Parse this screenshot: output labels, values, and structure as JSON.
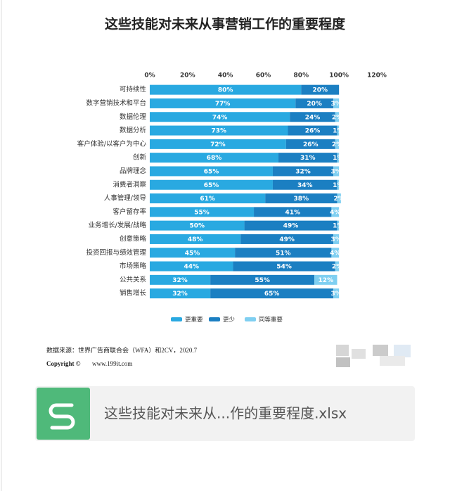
{
  "chart_data": {
    "type": "stacked-barh",
    "title": "这些技能对未来从事营销工作的重要程度",
    "categories": [
      "可持续性",
      "数字营销技术和平台",
      "数据伦理",
      "数据分析",
      "客户体验/以客户为中心",
      "创新",
      "品牌理念",
      "消费者洞察",
      "人事管理/领导",
      "客户留存率",
      "业务增长/发展/战略",
      "创意策略",
      "投资回报与绩效管理",
      "市场策略",
      "公共关系",
      "销售增长"
    ],
    "series": [
      {
        "name": "更重要",
        "color": "#29a9e1",
        "values": [
          80,
          77,
          74,
          73,
          72,
          68,
          65,
          65,
          61,
          55,
          50,
          48,
          45,
          44,
          32,
          32
        ],
        "value_labels": [
          "80%",
          "77%",
          "74%",
          "73%",
          "72%",
          "68%",
          "65%",
          "65%",
          "61%",
          "55%",
          "50%",
          "48%",
          "45%",
          "44%",
          "32%",
          "32%"
        ]
      },
      {
        "name": "更少",
        "color": "#1b7fc2",
        "values": [
          20,
          20,
          24,
          26,
          26,
          31,
          32,
          34,
          38,
          41,
          49,
          49,
          51,
          54,
          55,
          65
        ],
        "value_labels": [
          "20%",
          "20%",
          "24%",
          "26%",
          "26%",
          "31%",
          "32%",
          "34%",
          "38%",
          "41%",
          "49%",
          "49%",
          "51%",
          "54%",
          "55%",
          "65%"
        ]
      },
      {
        "name": "同等重要",
        "color": "#7fcff1",
        "values": [
          null,
          3,
          2,
          1,
          2,
          1,
          3,
          1,
          2,
          4,
          1,
          3,
          4,
          2,
          12,
          3
        ],
        "value_labels": [
          null,
          "3%",
          "2%",
          "1%",
          "2%",
          "1%",
          "3%",
          "1%",
          "2%",
          "4%",
          "1%",
          "3%",
          "4%",
          "2%",
          "12%",
          "3%"
        ]
      }
    ],
    "xlim": [
      0,
      120
    ],
    "xticks": [
      {
        "value": 0,
        "label": "0%"
      },
      {
        "value": 20,
        "label": "20%"
      },
      {
        "value": 40,
        "label": "40%"
      },
      {
        "value": 60,
        "label": "60%"
      },
      {
        "value": 80,
        "label": "80%"
      },
      {
        "value": 100,
        "label": "100%"
      },
      {
        "value": 120,
        "label": "120%"
      }
    ],
    "grid": false,
    "legend": "bottom",
    "source": "数据来源：世界广告商联合会（WFA）和2CV，2020.7",
    "copyright": "Copyright ©",
    "website": "www.199it.com"
  },
  "attachment": {
    "filename": "这些技能对未来从...作的重要程度.xlsx"
  }
}
